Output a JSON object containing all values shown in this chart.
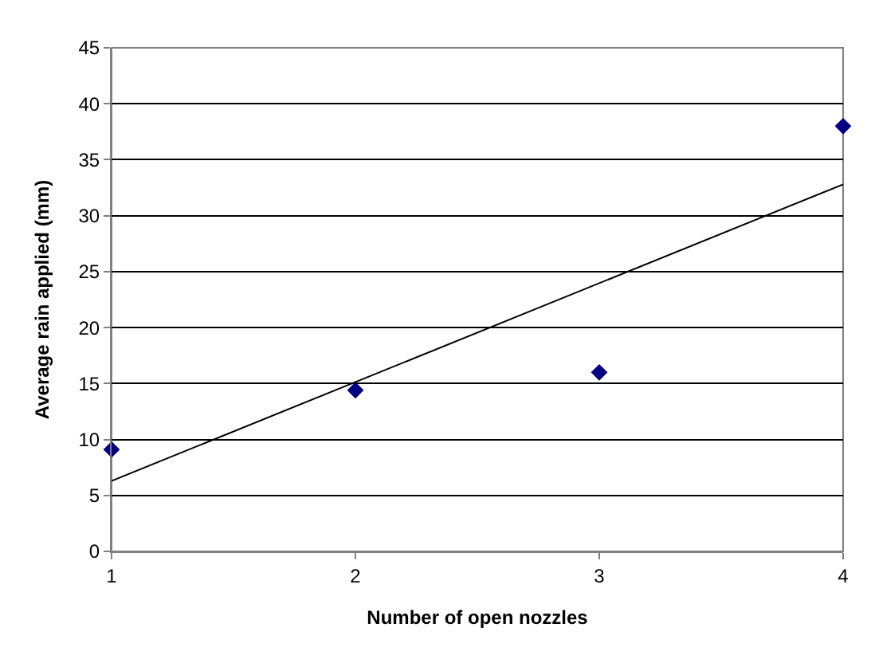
{
  "chart_data": {
    "type": "scatter",
    "xlabel": "Number of open nozzles",
    "ylabel": "Average rain applied (mm)",
    "series": [
      {
        "color": "#000080",
        "marker": "diamond",
        "x": [
          1,
          2,
          3,
          4
        ],
        "values": [
          9.1,
          14.4,
          16.0,
          38.0
        ]
      },
      {
        "type": "line",
        "color": "#000000",
        "marker": "none",
        "line_style": "solid",
        "x": [
          1,
          4
        ],
        "values": [
          6.3,
          32.8
        ]
      }
    ],
    "xlim": [
      1,
      4
    ],
    "xticks": [
      1,
      2,
      3,
      4
    ],
    "ylim": [
      0,
      45
    ],
    "yticks": [
      0,
      5,
      10,
      15,
      20,
      25,
      30,
      35,
      40,
      45
    ],
    "grid": "y"
  }
}
